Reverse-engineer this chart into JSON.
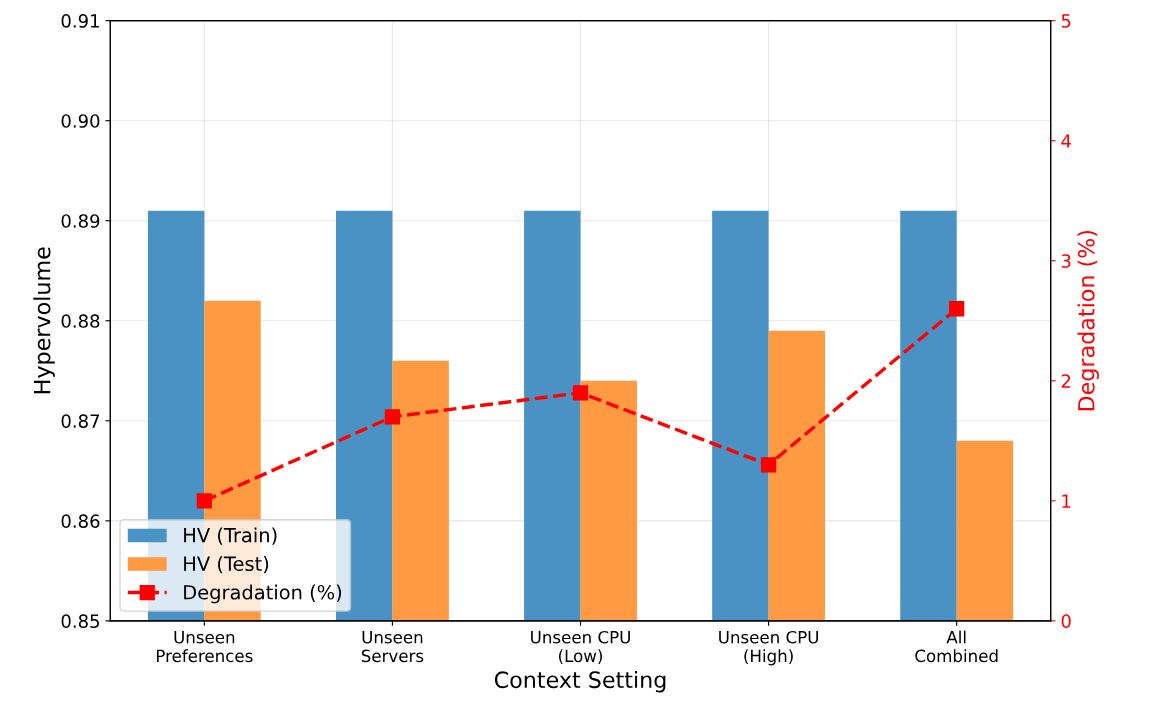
{
  "chart_data": {
    "type": "bar",
    "xlabel": "Context Setting",
    "ylabel": "Hypervolume",
    "y2label": "Degradation (%)",
    "categories": [
      "Unseen\nPreferences",
      "Unseen\nServers",
      "Unseen CPU\n(Low)",
      "Unseen CPU\n(High)",
      "All\nCombined"
    ],
    "series": [
      {
        "name": "HV (Train)",
        "color": "#4a92c3",
        "values": [
          0.891,
          0.891,
          0.891,
          0.891,
          0.891
        ]
      },
      {
        "name": "HV (Test)",
        "color": "#fd9a42",
        "values": [
          0.882,
          0.876,
          0.874,
          0.879,
          0.868
        ]
      },
      {
        "name": "Degradation (%)",
        "type": "line",
        "axis": "y2",
        "color": "#ff0000",
        "marker": "square",
        "line_style": "dashed",
        "values": [
          1.0,
          1.7,
          1.9,
          1.3,
          2.6
        ]
      }
    ],
    "ylim": [
      0.85,
      0.91
    ],
    "yticks": [
      {
        "value": 0.85,
        "label": "0.85"
      },
      0.86,
      0.87,
      0.88,
      0.89,
      {
        "value": 0.9,
        "label": "0.90"
      },
      0.91
    ],
    "y2lim": [
      0,
      5
    ],
    "y2ticks": [
      0,
      1,
      2,
      3,
      4,
      5
    ],
    "grid": true,
    "legend": "bottom left"
  }
}
